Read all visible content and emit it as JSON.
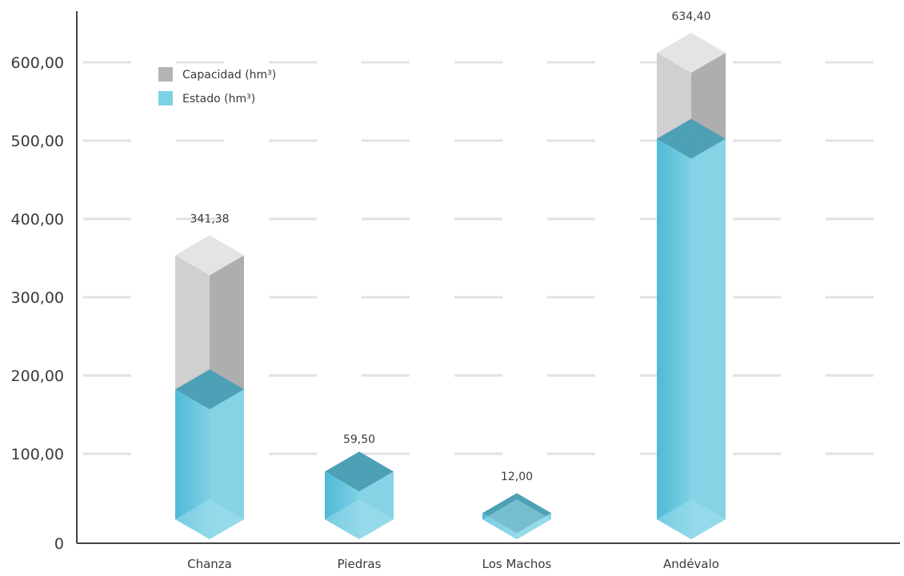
{
  "chart_data": {
    "type": "bar",
    "style": "3d-stacked-isometric",
    "title": "",
    "xlabel": "",
    "ylabel": "",
    "ylim": [
      0,
      600
    ],
    "yticks": [
      0,
      100,
      200,
      300,
      400,
      500,
      600
    ],
    "ytick_labels": [
      "0",
      "100,00",
      "200,00",
      "300,00",
      "400,00",
      "500,00",
      "600,00"
    ],
    "grid": true,
    "legend_position": "top-left",
    "categories": [
      "Chanza",
      "Piedras",
      "Los Machos",
      "Andévalo"
    ],
    "series": [
      {
        "name": "Capacidad (hm³)",
        "values": [
          341.38,
          59.5,
          12.0,
          634.4
        ],
        "color": "#b4b4b4"
      },
      {
        "name": "Estado (hm³)",
        "values": [
          170,
          65,
          12,
          490
        ],
        "color": "#7dd1e4"
      }
    ],
    "value_labels": [
      "341,38",
      "59,50",
      "12,00",
      "634,40"
    ],
    "colors": {
      "capacity_left": "#d0d0d0",
      "capacity_right": "#aeaeae",
      "capacity_top": "#e4e4e4",
      "state_left": "#5fc4de",
      "state_right": "#86d3e6",
      "state_top": "#4fa3b8"
    }
  }
}
